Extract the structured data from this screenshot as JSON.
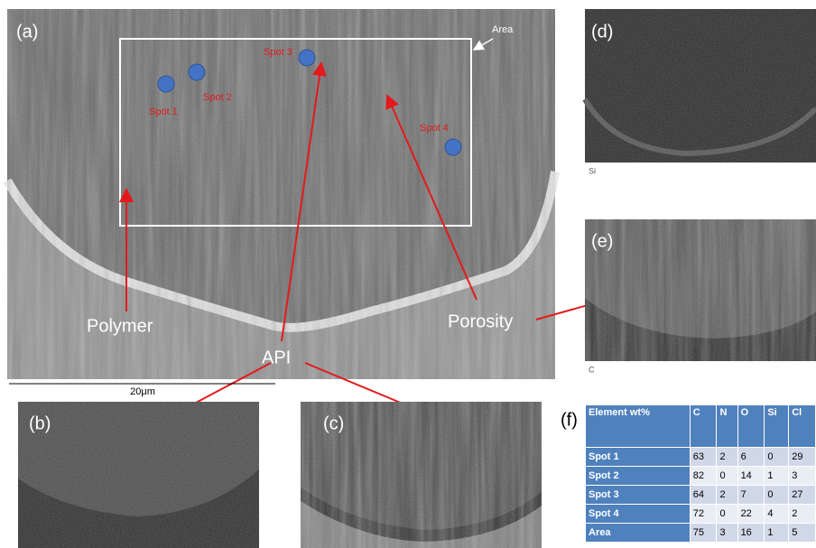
{
  "panels": {
    "a": {
      "label": "(a)",
      "area": "Area",
      "spots": [
        "Spot 1",
        "Spot 2",
        "Spot 3",
        "Spot 4"
      ],
      "annotations": {
        "polymer": "Polymer",
        "api": "API",
        "porosity": "Porosity"
      },
      "scale_bar": "20μm"
    },
    "b": {
      "label": "(b)"
    },
    "c": {
      "label": "(c)"
    },
    "d": {
      "label": "(d)",
      "element": "Si"
    },
    "e": {
      "label": "(e)",
      "element": "C"
    },
    "f": {
      "label": "(f)"
    }
  },
  "table": {
    "header": [
      "Element wt%",
      "C",
      "N",
      "O",
      "Si",
      "Cl"
    ],
    "rows": [
      [
        "Spot 1",
        63,
        2,
        6,
        0,
        29
      ],
      [
        "Spot 2",
        82,
        0,
        14,
        1,
        3
      ],
      [
        "Spot 3",
        64,
        2,
        7,
        0,
        27
      ],
      [
        "Spot 4",
        72,
        0,
        22,
        4,
        2
      ],
      [
        "Area",
        75,
        3,
        16,
        1,
        5
      ]
    ]
  }
}
